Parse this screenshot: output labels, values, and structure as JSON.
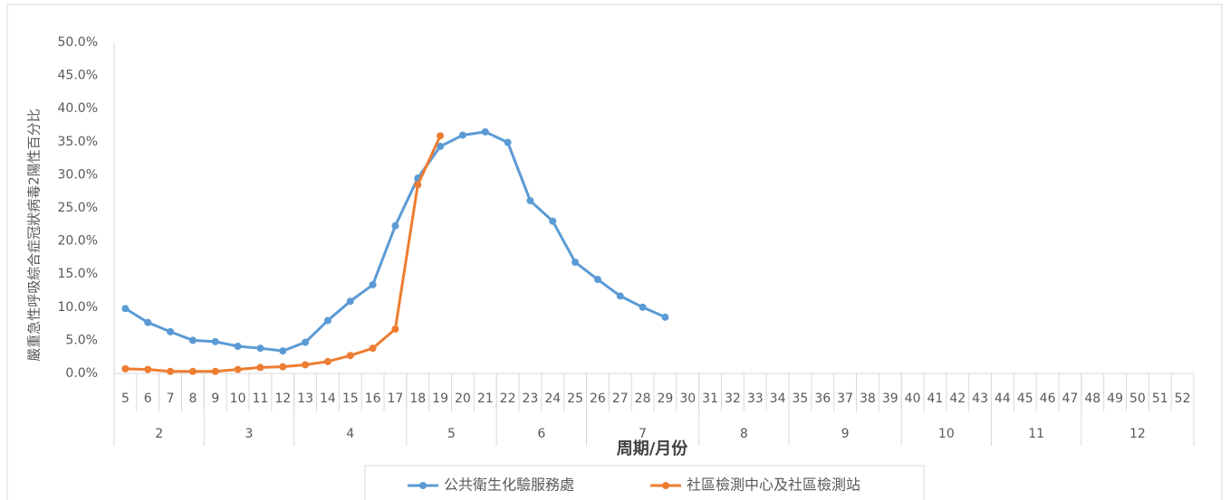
{
  "chart_data": {
    "type": "line",
    "y_label": "嚴重急性呼吸綜合症冠狀病毒2陽性百分比",
    "x_label": "周期/月份",
    "categories": [
      "5",
      "6",
      "7",
      "8",
      "9",
      "10",
      "11",
      "12",
      "13",
      "14",
      "15",
      "16",
      "17",
      "18",
      "19",
      "20",
      "21",
      "22",
      "23",
      "24",
      "25",
      "26",
      "27",
      "28",
      "29",
      "30",
      "31",
      "32",
      "33",
      "34",
      "35",
      "36",
      "37",
      "38",
      "39",
      "40",
      "41",
      "42",
      "43",
      "44",
      "45",
      "46",
      "47",
      "48",
      "49",
      "50",
      "51",
      "52"
    ],
    "category_groups": [
      {
        "label": "2",
        "span": 4
      },
      {
        "label": "3",
        "span": 4
      },
      {
        "label": "4",
        "span": 5
      },
      {
        "label": "5",
        "span": 4
      },
      {
        "label": "6",
        "span": 4
      },
      {
        "label": "7",
        "span": 5
      },
      {
        "label": "8",
        "span": 4
      },
      {
        "label": "9",
        "span": 5
      },
      {
        "label": "10",
        "span": 4
      },
      {
        "label": "11",
        "span": 4
      },
      {
        "label": "12",
        "span": 5
      }
    ],
    "series": [
      {
        "name": "公共衛生化驗服務處",
        "color": "#5b9bd5",
        "values": [
          9.8,
          7.7,
          6.3,
          5.0,
          4.8,
          4.1,
          3.8,
          3.4,
          4.7,
          8.0,
          10.9,
          13.4,
          22.3,
          29.5,
          34.3,
          36.0,
          36.5,
          34.9,
          26.1,
          23.0,
          16.8,
          14.2,
          11.7,
          10.0,
          8.5,
          null,
          null,
          null,
          null,
          null,
          null,
          null,
          null,
          null,
          null,
          null,
          null,
          null,
          null,
          null,
          null,
          null,
          null,
          null,
          null,
          null,
          null,
          null
        ]
      },
      {
        "name": "社區檢測中心及社區檢測站",
        "color": "#ed7d31",
        "values": [
          0.7,
          0.6,
          0.3,
          0.3,
          0.3,
          0.6,
          0.9,
          1.0,
          1.3,
          1.8,
          2.7,
          3.8,
          6.7,
          28.5,
          35.9,
          null,
          null,
          null,
          null,
          null,
          null,
          null,
          null,
          null,
          null,
          null,
          null,
          null,
          null,
          null,
          null,
          null,
          null,
          null,
          null,
          null,
          null,
          null,
          null,
          null,
          null,
          null,
          null,
          null,
          null,
          null,
          null,
          null
        ]
      }
    ],
    "ylim": [
      0,
      50
    ],
    "yticks": [
      {
        "value": 0,
        "label": "0.0%"
      },
      {
        "value": 5,
        "label": "5.0%"
      },
      {
        "value": 10,
        "label": "10.0%"
      },
      {
        "value": 15,
        "label": "15.0%"
      },
      {
        "value": 20,
        "label": "20.0%"
      },
      {
        "value": 25,
        "label": "25.0%"
      },
      {
        "value": 30,
        "label": "30.0%"
      },
      {
        "value": 35,
        "label": "35.0%"
      },
      {
        "value": 40,
        "label": "40.0%"
      },
      {
        "value": 45,
        "label": "45.0%"
      },
      {
        "value": 50,
        "label": "50.0%"
      }
    ],
    "grid": false,
    "legend": "bottom"
  }
}
